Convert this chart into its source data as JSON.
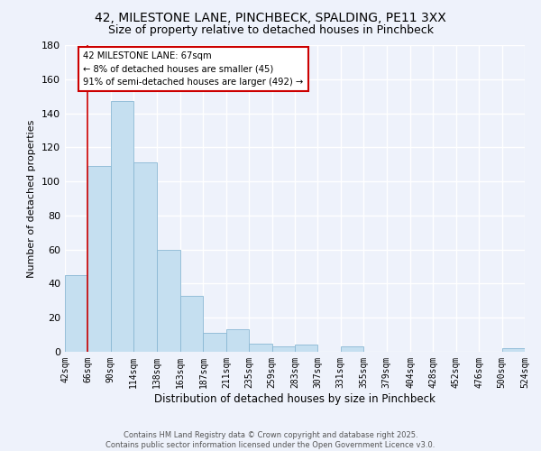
{
  "title": "42, MILESTONE LANE, PINCHBECK, SPALDING, PE11 3XX",
  "subtitle": "Size of property relative to detached houses in Pinchbeck",
  "xlabel": "Distribution of detached houses by size in Pinchbeck",
  "ylabel": "Number of detached properties",
  "bar_color": "#c5dff0",
  "bar_edge_color": "#8ab8d4",
  "bin_edges": [
    42,
    66,
    90,
    114,
    138,
    163,
    187,
    211,
    235,
    259,
    283,
    307,
    331,
    355,
    379,
    404,
    428,
    452,
    476,
    500,
    524
  ],
  "bin_labels": [
    "42sqm",
    "66sqm",
    "90sqm",
    "114sqm",
    "138sqm",
    "163sqm",
    "187sqm",
    "211sqm",
    "235sqm",
    "259sqm",
    "283sqm",
    "307sqm",
    "331sqm",
    "355sqm",
    "379sqm",
    "404sqm",
    "428sqm",
    "452sqm",
    "476sqm",
    "500sqm",
    "524sqm"
  ],
  "counts": [
    45,
    109,
    147,
    111,
    60,
    33,
    11,
    13,
    5,
    3,
    4,
    0,
    3,
    0,
    0,
    0,
    0,
    0,
    0,
    2
  ],
  "ylim": [
    0,
    180
  ],
  "yticks": [
    0,
    20,
    40,
    60,
    80,
    100,
    120,
    140,
    160,
    180
  ],
  "vline_x": 66,
  "vline_color": "#cc0000",
  "annotation_title": "42 MILESTONE LANE: 67sqm",
  "annotation_line1": "← 8% of detached houses are smaller (45)",
  "annotation_line2": "91% of semi-detached houses are larger (492) →",
  "footer1": "Contains HM Land Registry data © Crown copyright and database right 2025.",
  "footer2": "Contains public sector information licensed under the Open Government Licence v3.0.",
  "background_color": "#eef2fb",
  "grid_color": "#ffffff",
  "title_fontsize": 10,
  "subtitle_fontsize": 9,
  "ylabel_fontsize": 8,
  "xlabel_fontsize": 8.5,
  "tick_fontsize": 7,
  "footer_fontsize": 6
}
